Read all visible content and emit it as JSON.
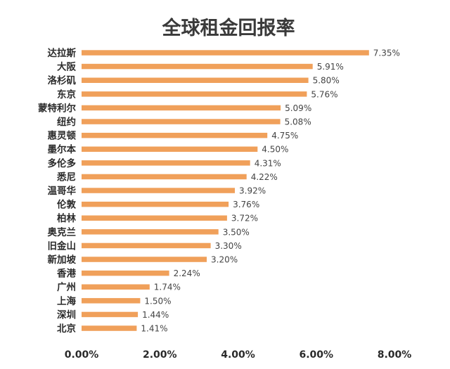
{
  "chart_data": {
    "type": "bar",
    "orientation": "horizontal",
    "title": "全球租金回报率",
    "categories": [
      "达拉斯",
      "大阪",
      "洛杉矶",
      "东京",
      "蒙特利尔",
      "纽约",
      "惠灵顿",
      "墨尔本",
      "多伦多",
      "悉尼",
      "温哥华",
      "伦敦",
      "柏林",
      "奥克兰",
      "旧金山",
      "新加坡",
      "香港",
      "广州",
      "上海",
      "深圳",
      "北京"
    ],
    "values": [
      7.35,
      5.91,
      5.8,
      5.76,
      5.09,
      5.08,
      4.75,
      4.5,
      4.31,
      4.22,
      3.92,
      3.76,
      3.72,
      3.5,
      3.3,
      3.2,
      2.24,
      1.74,
      1.5,
      1.44,
      1.41
    ],
    "data_labels": [
      "7.35%",
      "5.91%",
      "5.80%",
      "5.76%",
      "5.09%",
      "5.08%",
      "4.75%",
      "4.50%",
      "4.31%",
      "4.22%",
      "3.92%",
      "3.76%",
      "3.72%",
      "3.50%",
      "3.30%",
      "3.20%",
      "2.24%",
      "1.74%",
      "1.50%",
      "1.44%",
      "1.41%"
    ],
    "xlim": [
      0,
      8
    ],
    "x_ticks": [
      0,
      2,
      4,
      6,
      8
    ],
    "x_tick_labels": [
      "0.00%",
      "2.00%",
      "4.00%",
      "6.00%",
      "8.00%"
    ],
    "xlabel": "",
    "ylabel": "",
    "grid": false,
    "legend": "none",
    "bar_color": "#F0A05A"
  }
}
